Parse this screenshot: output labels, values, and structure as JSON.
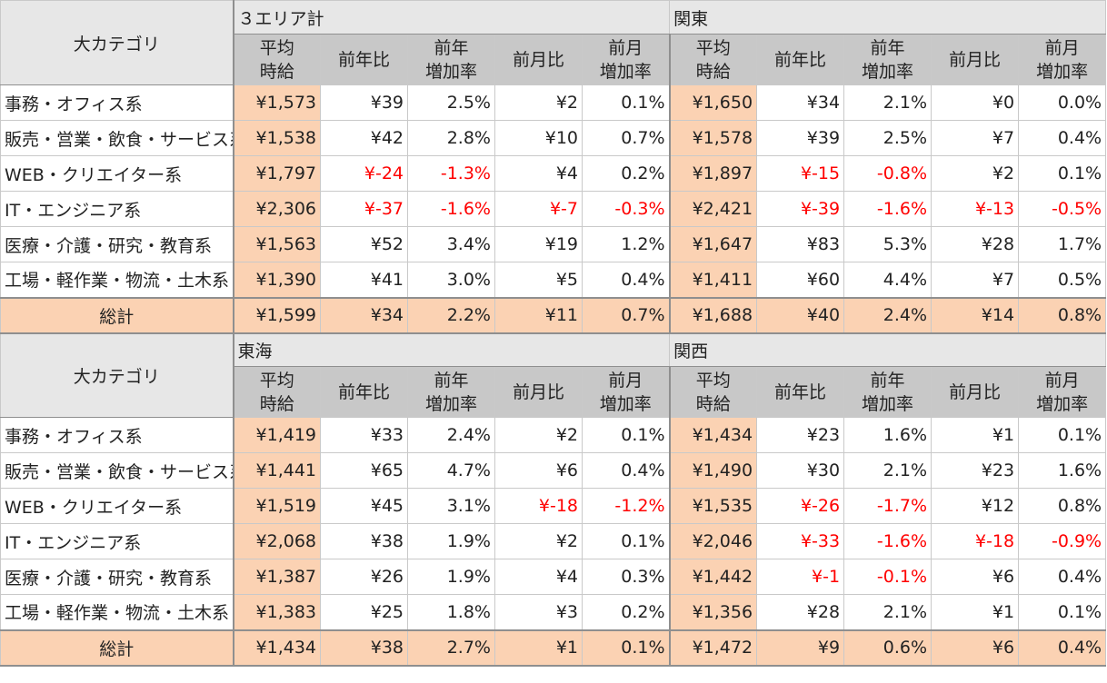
{
  "category_header": "大カテゴリ",
  "column_headers": {
    "avg": [
      "平均",
      "時給"
    ],
    "yoy": "前年比",
    "yoy_rate": [
      "前年",
      "増加率"
    ],
    "mom": "前月比",
    "mom_rate": [
      "前月",
      "増加率"
    ]
  },
  "colors": {
    "negative": "#ff0000",
    "highlight": "#fbd2b3",
    "header": "#c8c8c8"
  },
  "blocks": [
    {
      "areas": [
        "３エリア計",
        "関東"
      ],
      "rows": [
        {
          "label": "事務・オフィス系",
          "cells": [
            "¥1,573",
            "¥39",
            "2.5%",
            "¥2",
            "0.1%",
            "¥1,650",
            "¥34",
            "2.1%",
            "¥0",
            "0.0%"
          ]
        },
        {
          "label": "販売・営業・飲食・サービス系",
          "cells": [
            "¥1,538",
            "¥42",
            "2.8%",
            "¥10",
            "0.7%",
            "¥1,578",
            "¥39",
            "2.5%",
            "¥7",
            "0.4%"
          ]
        },
        {
          "label": "WEB・クリエイター系",
          "cells": [
            "¥1,797",
            "¥-24",
            "-1.3%",
            "¥4",
            "0.2%",
            "¥1,897",
            "¥-15",
            "-0.8%",
            "¥2",
            "0.1%"
          ]
        },
        {
          "label": "IT・エンジニア系",
          "cells": [
            "¥2,306",
            "¥-37",
            "-1.6%",
            "¥-7",
            "-0.3%",
            "¥2,421",
            "¥-39",
            "-1.6%",
            "¥-13",
            "-0.5%"
          ]
        },
        {
          "label": "医療・介護・研究・教育系",
          "cells": [
            "¥1,563",
            "¥52",
            "3.4%",
            "¥19",
            "1.2%",
            "¥1,647",
            "¥83",
            "5.3%",
            "¥28",
            "1.7%"
          ]
        },
        {
          "label": "工場・軽作業・物流・土木系",
          "cells": [
            "¥1,390",
            "¥41",
            "3.0%",
            "¥5",
            "0.4%",
            "¥1,411",
            "¥60",
            "4.4%",
            "¥7",
            "0.5%"
          ]
        }
      ],
      "total": {
        "label": "総計",
        "cells": [
          "¥1,599",
          "¥34",
          "2.2%",
          "¥11",
          "0.7%",
          "¥1,688",
          "¥40",
          "2.4%",
          "¥14",
          "0.8%"
        ]
      }
    },
    {
      "areas": [
        "東海",
        "関西"
      ],
      "rows": [
        {
          "label": "事務・オフィス系",
          "cells": [
            "¥1,419",
            "¥33",
            "2.4%",
            "¥2",
            "0.1%",
            "¥1,434",
            "¥23",
            "1.6%",
            "¥1",
            "0.1%"
          ]
        },
        {
          "label": "販売・営業・飲食・サービス系",
          "cells": [
            "¥1,441",
            "¥65",
            "4.7%",
            "¥6",
            "0.4%",
            "¥1,490",
            "¥30",
            "2.1%",
            "¥23",
            "1.6%"
          ]
        },
        {
          "label": "WEB・クリエイター系",
          "cells": [
            "¥1,519",
            "¥45",
            "3.1%",
            "¥-18",
            "-1.2%",
            "¥1,535",
            "¥-26",
            "-1.7%",
            "¥12",
            "0.8%"
          ]
        },
        {
          "label": "IT・エンジニア系",
          "cells": [
            "¥2,068",
            "¥38",
            "1.9%",
            "¥2",
            "0.1%",
            "¥2,046",
            "¥-33",
            "-1.6%",
            "¥-18",
            "-0.9%"
          ]
        },
        {
          "label": "医療・介護・研究・教育系",
          "cells": [
            "¥1,387",
            "¥26",
            "1.9%",
            "¥4",
            "0.3%",
            "¥1,442",
            "¥-1",
            "-0.1%",
            "¥6",
            "0.4%"
          ]
        },
        {
          "label": "工場・軽作業・物流・土木系",
          "cells": [
            "¥1,383",
            "¥25",
            "1.8%",
            "¥3",
            "0.2%",
            "¥1,356",
            "¥28",
            "2.1%",
            "¥1",
            "0.1%"
          ]
        }
      ],
      "total": {
        "label": "総計",
        "cells": [
          "¥1,434",
          "¥38",
          "2.7%",
          "¥1",
          "0.1%",
          "¥1,472",
          "¥9",
          "0.6%",
          "¥6",
          "0.4%"
        ]
      }
    }
  ]
}
